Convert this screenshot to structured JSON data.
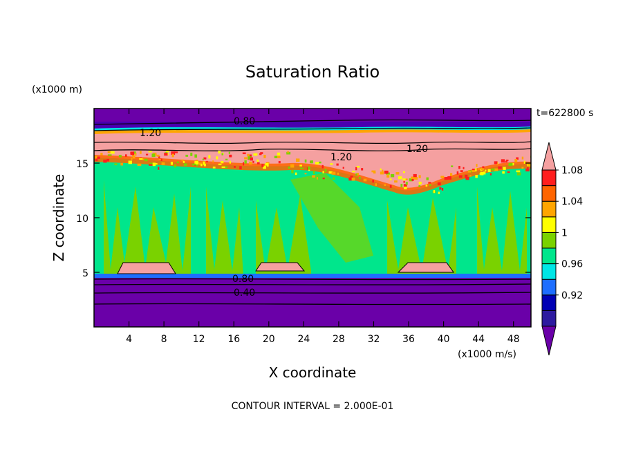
{
  "chart_data": {
    "type": "heatmap",
    "title": "Saturation Ratio",
    "xlabel": "X coordinate",
    "ylabel": "Z coordinate",
    "x_unit": "(x1000 m/s)",
    "y_unit": "(x1000 m)",
    "time_label": "t=622800 s",
    "footer": "CONTOUR INTERVAL = 2.000E-01",
    "xlim": [
      0,
      50
    ],
    "ylim": [
      0,
      20
    ],
    "x_ticks": [
      "4",
      "8",
      "12",
      "16",
      "20",
      "24",
      "28",
      "32",
      "36",
      "40",
      "44",
      "48"
    ],
    "y_ticks": [
      "5",
      "10",
      "15"
    ],
    "colorbar": {
      "tick_labels": [
        "0.92",
        "0.96",
        "1",
        "1.04",
        "1.08"
      ],
      "colors": [
        "#6a00a8",
        "#2d1aa0",
        "#0000b4",
        "#1e6eff",
        "#00e6e6",
        "#00e68c",
        "#7ad200",
        "#ffff00",
        "#ffa500",
        "#ff6400",
        "#ff1e1e",
        "#f5a0a0"
      ]
    },
    "contour_labels": [
      "0.80",
      "1.20",
      "1.20",
      "1.20",
      "0.80",
      "0.40"
    ]
  }
}
